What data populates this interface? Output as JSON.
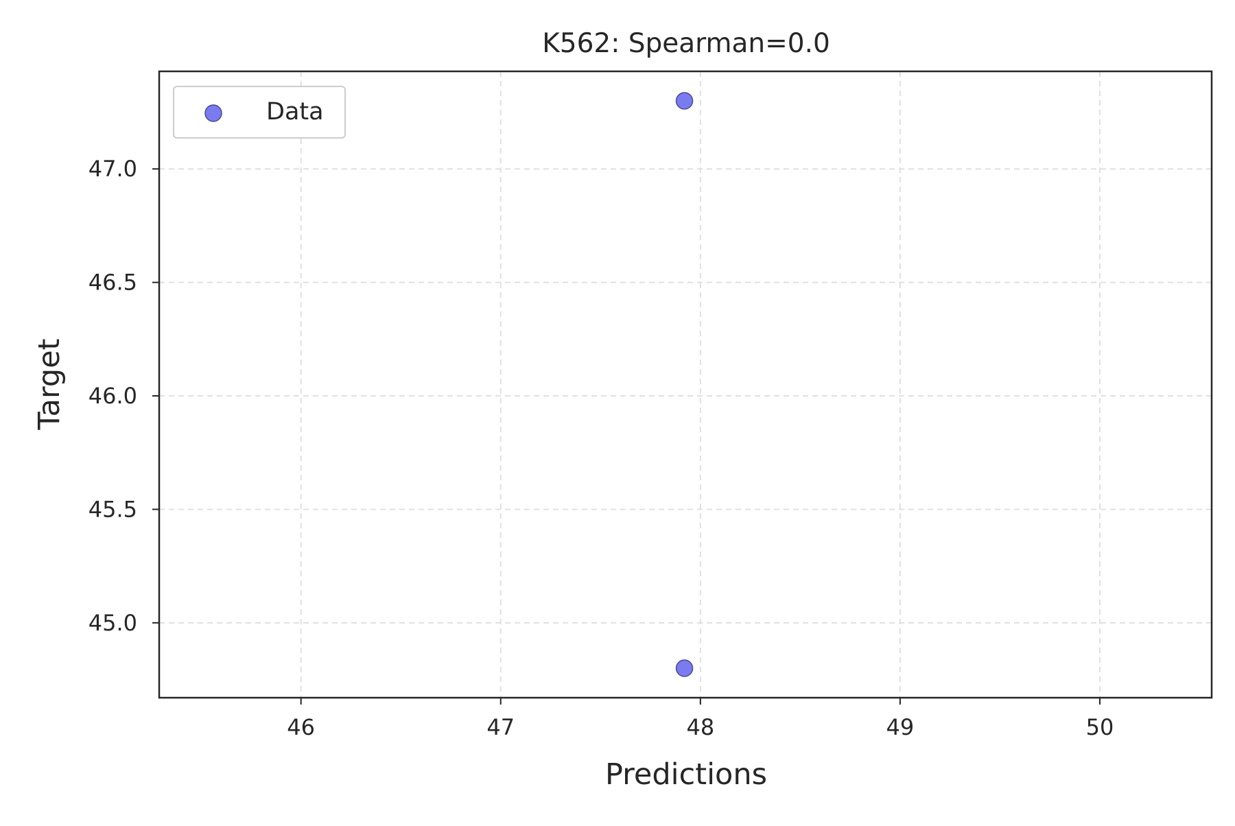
{
  "chart_data": {
    "type": "scatter",
    "title": "K562: Spearman=0.0",
    "xlabel": "Predictions",
    "ylabel": "Target",
    "xlim": [
      45.29,
      50.56
    ],
    "ylim": [
      44.67,
      47.43
    ],
    "xticks": [
      46,
      47,
      48,
      49,
      50
    ],
    "yticks": [
      45.0,
      45.5,
      46.0,
      46.5,
      47.0
    ],
    "xtick_labels": [
      "46",
      "47",
      "48",
      "49",
      "50"
    ],
    "ytick_labels": [
      "45.0",
      "45.5",
      "46.0",
      "46.5",
      "47.0"
    ],
    "grid": true,
    "legend_position": "top-left",
    "series": [
      {
        "name": "Data",
        "color": "#7b7bf0",
        "edge_color": "#4a4a8a",
        "points": [
          {
            "x": 47.92,
            "y": 47.3
          },
          {
            "x": 47.92,
            "y": 44.8
          }
        ]
      }
    ]
  }
}
